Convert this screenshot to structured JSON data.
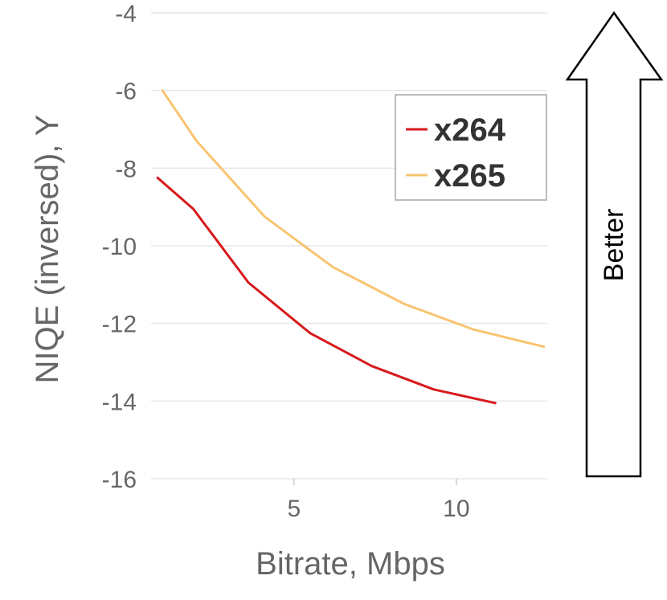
{
  "chart_data": {
    "type": "line",
    "xlabel": "Bitrate, Mbps",
    "ylabel": "NIQE (inversed), Y",
    "xlim": [
      0.6,
      12.8
    ],
    "ylim": [
      -16,
      -4
    ],
    "xticks": [
      5,
      10
    ],
    "yticks": [
      -4,
      -6,
      -8,
      -10,
      -12,
      -14,
      -16
    ],
    "grid": true,
    "legend": "top-right",
    "series": [
      {
        "name": "x264",
        "color": "#d7191c",
        "x": [
          0.8,
          1.9,
          3.6,
          5.5,
          7.4,
          9.3,
          11.2
        ],
        "y": [
          -8.25,
          -9.05,
          -10.95,
          -12.25,
          -13.1,
          -13.7,
          -14.05
        ]
      },
      {
        "name": "x265",
        "color": "#f8c471",
        "x": [
          0.95,
          2.0,
          4.1,
          6.2,
          8.4,
          10.5,
          12.7
        ],
        "y": [
          -6.0,
          -7.3,
          -9.25,
          -10.55,
          -11.5,
          -12.15,
          -12.6
        ]
      }
    ]
  },
  "annotation": {
    "arrow_label": "Better"
  }
}
